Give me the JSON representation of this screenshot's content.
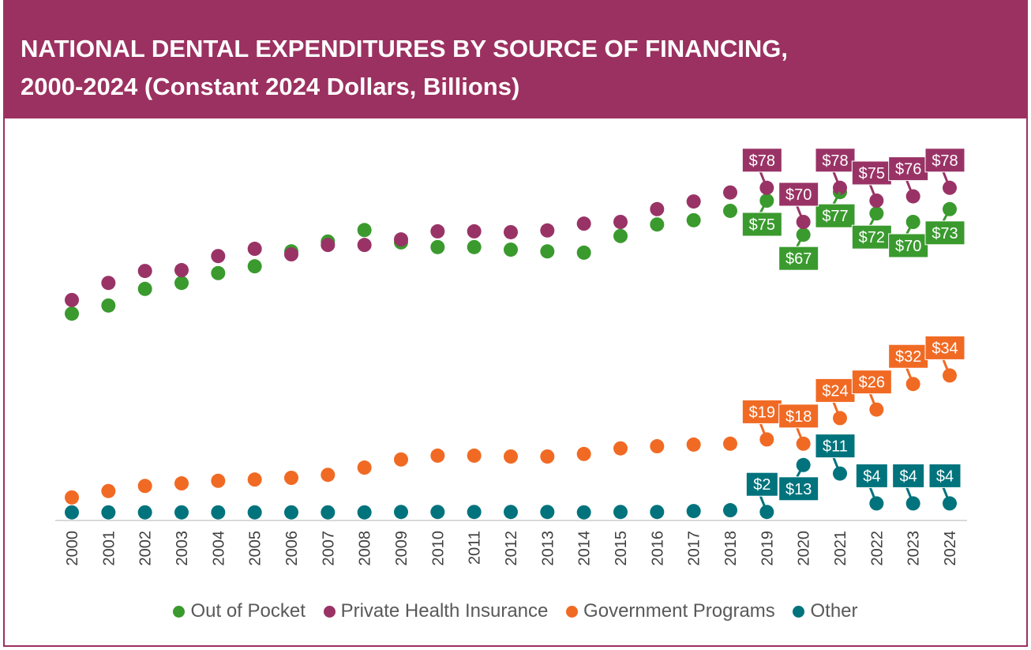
{
  "title_line1": "NATIONAL DENTAL EXPENDITURES BY SOURCE OF FINANCING,",
  "title_line2": "2000-2024 (Constant 2024 Dollars, Billions)",
  "colors": {
    "header": "#9b3160",
    "Out of Pocket": "#3a9a2e",
    "Private Health Insurance": "#993366",
    "Government Programs": "#f06a24",
    "Other": "#00737c"
  },
  "chart_data": {
    "type": "scatter",
    "title": "NATIONAL DENTAL EXPENDITURES BY SOURCE OF FINANCING, 2000-2024 (Constant 2024 Dollars, Billions)",
    "xlabel": "",
    "ylabel": "",
    "ylim": [
      0,
      80
    ],
    "grid": false,
    "legend": "bottom",
    "categories": [
      "2000",
      "2001",
      "2002",
      "2003",
      "2004",
      "2005",
      "2006",
      "2007",
      "2008",
      "2009",
      "2010",
      "2011",
      "2012",
      "2013",
      "2014",
      "2015",
      "2016",
      "2017",
      "2018",
      "2019",
      "2020",
      "2021",
      "2022",
      "2023",
      "2024"
    ],
    "series": [
      {
        "name": "Out of Pocket",
        "color": "#3a9a2e",
        "values": [
          48.5,
          50.4,
          54.3,
          55.7,
          58,
          59.6,
          63.1,
          65.4,
          68.1,
          65.2,
          64.1,
          64.1,
          63.5,
          63.1,
          62.8,
          66.7,
          69.4,
          70.4,
          72.6,
          75,
          67,
          77,
          72,
          70,
          73
        ],
        "labels": {
          "2019": {
            "text": "$75",
            "pos": "below"
          },
          "2020": {
            "text": "$67",
            "pos": "below"
          },
          "2021": {
            "text": "$77",
            "pos": "below"
          },
          "2022": {
            "text": "$72",
            "pos": "below"
          },
          "2023": {
            "text": "$70",
            "pos": "below"
          },
          "2024": {
            "text": "$73",
            "pos": "below"
          }
        }
      },
      {
        "name": "Private Health Insurance",
        "color": "#993366",
        "values": [
          51.7,
          55.7,
          58.5,
          58.7,
          62,
          63.7,
          62.4,
          64.6,
          64.6,
          65.9,
          67.8,
          67.8,
          67.6,
          68,
          69.6,
          70,
          73,
          74.8,
          76.9,
          78,
          70,
          78,
          75,
          76,
          78
        ],
        "labels": {
          "2019": {
            "text": "$78",
            "pos": "above"
          },
          "2020": {
            "text": "$70",
            "pos": "above"
          },
          "2021": {
            "text": "$78",
            "pos": "above"
          },
          "2022": {
            "text": "$75",
            "pos": "above"
          },
          "2023": {
            "text": "$76",
            "pos": "above"
          },
          "2024": {
            "text": "$78",
            "pos": "above"
          }
        }
      },
      {
        "name": "Government Programs",
        "color": "#f06a24",
        "values": [
          5.4,
          6.9,
          8.1,
          8.7,
          9.3,
          9.6,
          10,
          10.7,
          12.4,
          14.3,
          15.2,
          15.2,
          15,
          15,
          15.6,
          16.9,
          17.4,
          17.8,
          18,
          19,
          18,
          24,
          26,
          32,
          34
        ],
        "labels": {
          "2019": {
            "text": "$19",
            "pos": "above"
          },
          "2020": {
            "text": "$18",
            "pos": "above"
          },
          "2021": {
            "text": "$24",
            "pos": "above"
          },
          "2022": {
            "text": "$26",
            "pos": "above"
          },
          "2023": {
            "text": "$32",
            "pos": "above"
          },
          "2024": {
            "text": "$34",
            "pos": "above"
          }
        }
      },
      {
        "name": "Other",
        "color": "#00737c",
        "values": [
          1.9,
          1.9,
          1.9,
          1.9,
          1.9,
          1.9,
          1.9,
          1.9,
          1.9,
          2,
          2,
          2,
          2,
          2,
          1.9,
          2,
          2,
          2.2,
          2.4,
          2,
          13,
          11,
          4,
          4,
          4
        ],
        "labels": {
          "2019": {
            "text": "$2",
            "pos": "above"
          },
          "2020": {
            "text": "$13",
            "pos": "below"
          },
          "2021": {
            "text": "$11",
            "pos": "above"
          },
          "2022": {
            "text": "$4",
            "pos": "above"
          },
          "2023": {
            "text": "$4",
            "pos": "above"
          },
          "2024": {
            "text": "$4",
            "pos": "above"
          }
        }
      }
    ]
  },
  "legend": [
    "Out of Pocket",
    "Private Health Insurance",
    "Government Programs",
    "Other"
  ]
}
